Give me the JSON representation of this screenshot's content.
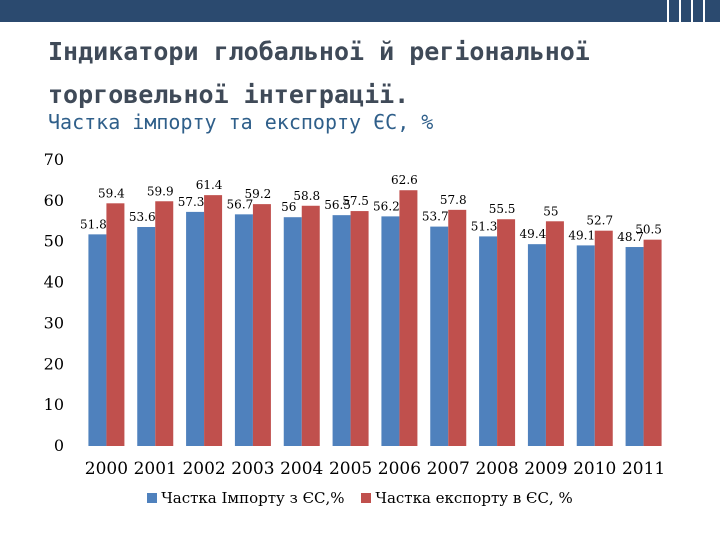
{
  "slide": {
    "title": "Індикатори глобальної й регіональної торговельної інтеграції.",
    "subtitle": "Частка імпорту та експорту ЄС, %"
  },
  "chart_data": {
    "type": "bar",
    "categories": [
      "2000",
      "2001",
      "2002",
      "2003",
      "2004",
      "2005",
      "2006",
      "2007",
      "2008",
      "2009",
      "2010",
      "2011"
    ],
    "series": [
      {
        "name": "Частка Імпорту з ЄС,%",
        "color": "#4f81bd",
        "values": [
          51.8,
          53.6,
          57.3,
          56.7,
          56,
          56.5,
          56.2,
          53.7,
          51.3,
          49.4,
          49.1,
          48.7
        ]
      },
      {
        "name": "Частка експорту в ЄС, %",
        "color": "#c0504d",
        "values": [
          59.4,
          59.9,
          61.4,
          59.2,
          58.8,
          57.5,
          62.6,
          57.8,
          55.5,
          55,
          52.7,
          50.5
        ]
      }
    ],
    "y_ticks": [
      "0",
      "10",
      "20",
      "30",
      "40",
      "50",
      "60",
      "70"
    ],
    "ylim": [
      0,
      70
    ],
    "grid": false,
    "legend_position": "bottom"
  }
}
